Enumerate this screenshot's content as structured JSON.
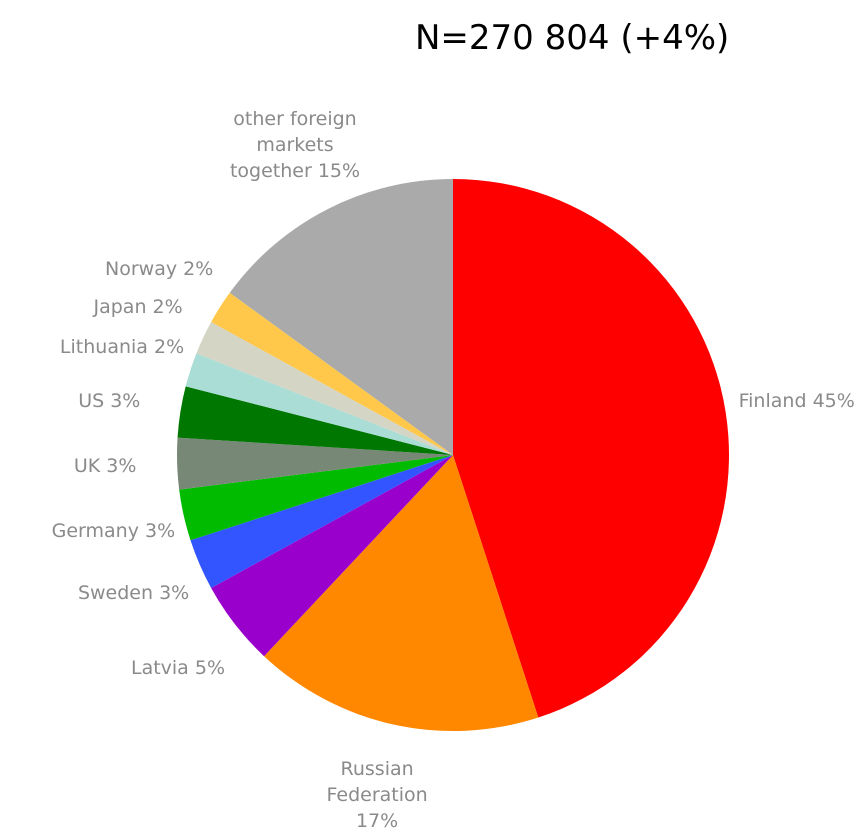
{
  "chart_data": {
    "type": "pie",
    "title": "N=270 804 (+4%)",
    "categories": [
      "Finland",
      "Russian Federation",
      "Latvia",
      "Sweden",
      "Germany",
      "UK",
      "US",
      "Lithuania",
      "Japan",
      "Norway",
      "other foreign markets together"
    ],
    "values": [
      45,
      17,
      5,
      3,
      3,
      3,
      3,
      2,
      2,
      2,
      15
    ],
    "value_labels": [
      "45%",
      "17%",
      "5%",
      "3%",
      "3%",
      "3%",
      "3%",
      "2%",
      "2%",
      "2%",
      "15%"
    ],
    "colors": [
      "#ff0000",
      "#ff8800",
      "#9900cc",
      "#3355ff",
      "#00bb00",
      "#778877",
      "#007700",
      "#aaddd5",
      "#d5d5c5",
      "#ffc84a",
      "#aaaaaa"
    ]
  }
}
